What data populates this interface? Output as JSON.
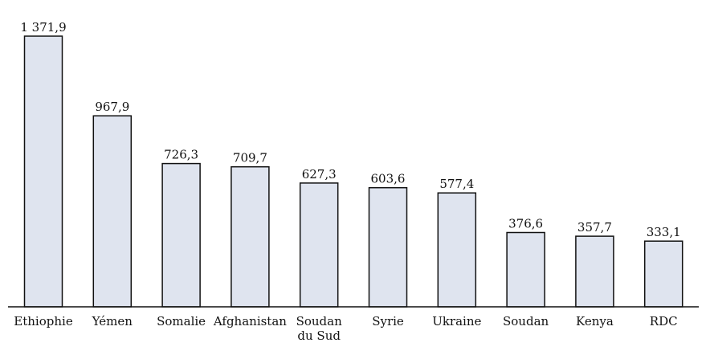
{
  "chart_data": {
    "type": "bar",
    "title": "",
    "xlabel": "",
    "ylabel": "",
    "grid": false,
    "categories": [
      "Ethiophie",
      "Yémen",
      "Somalie",
      "Afghanistan",
      "Soudan du Sud",
      "Syrie",
      "Ukraine",
      "Soudan",
      "Kenya",
      "RDC"
    ],
    "category_lines": [
      [
        "Ethiophie"
      ],
      [
        "Yémen"
      ],
      [
        "Somalie"
      ],
      [
        "Afghanistan"
      ],
      [
        "Soudan",
        "du Sud"
      ],
      [
        "Syrie"
      ],
      [
        "Ukraine"
      ],
      [
        "Soudan"
      ],
      [
        "Kenya"
      ],
      [
        "RDC"
      ]
    ],
    "values": [
      1371.9,
      967.9,
      726.3,
      709.7,
      627.3,
      603.6,
      577.4,
      376.6,
      357.7,
      333.1
    ],
    "value_labels": [
      "1 371,9",
      "967,9",
      "726,3",
      "709,7",
      "627,3",
      "603,6",
      "577,4",
      "376,6",
      "357,7",
      "333,1"
    ],
    "ylim": [
      0,
      1371.9
    ],
    "colors": {
      "bar_fill": "#dfe4ef",
      "bar_stroke": "#111111"
    }
  }
}
